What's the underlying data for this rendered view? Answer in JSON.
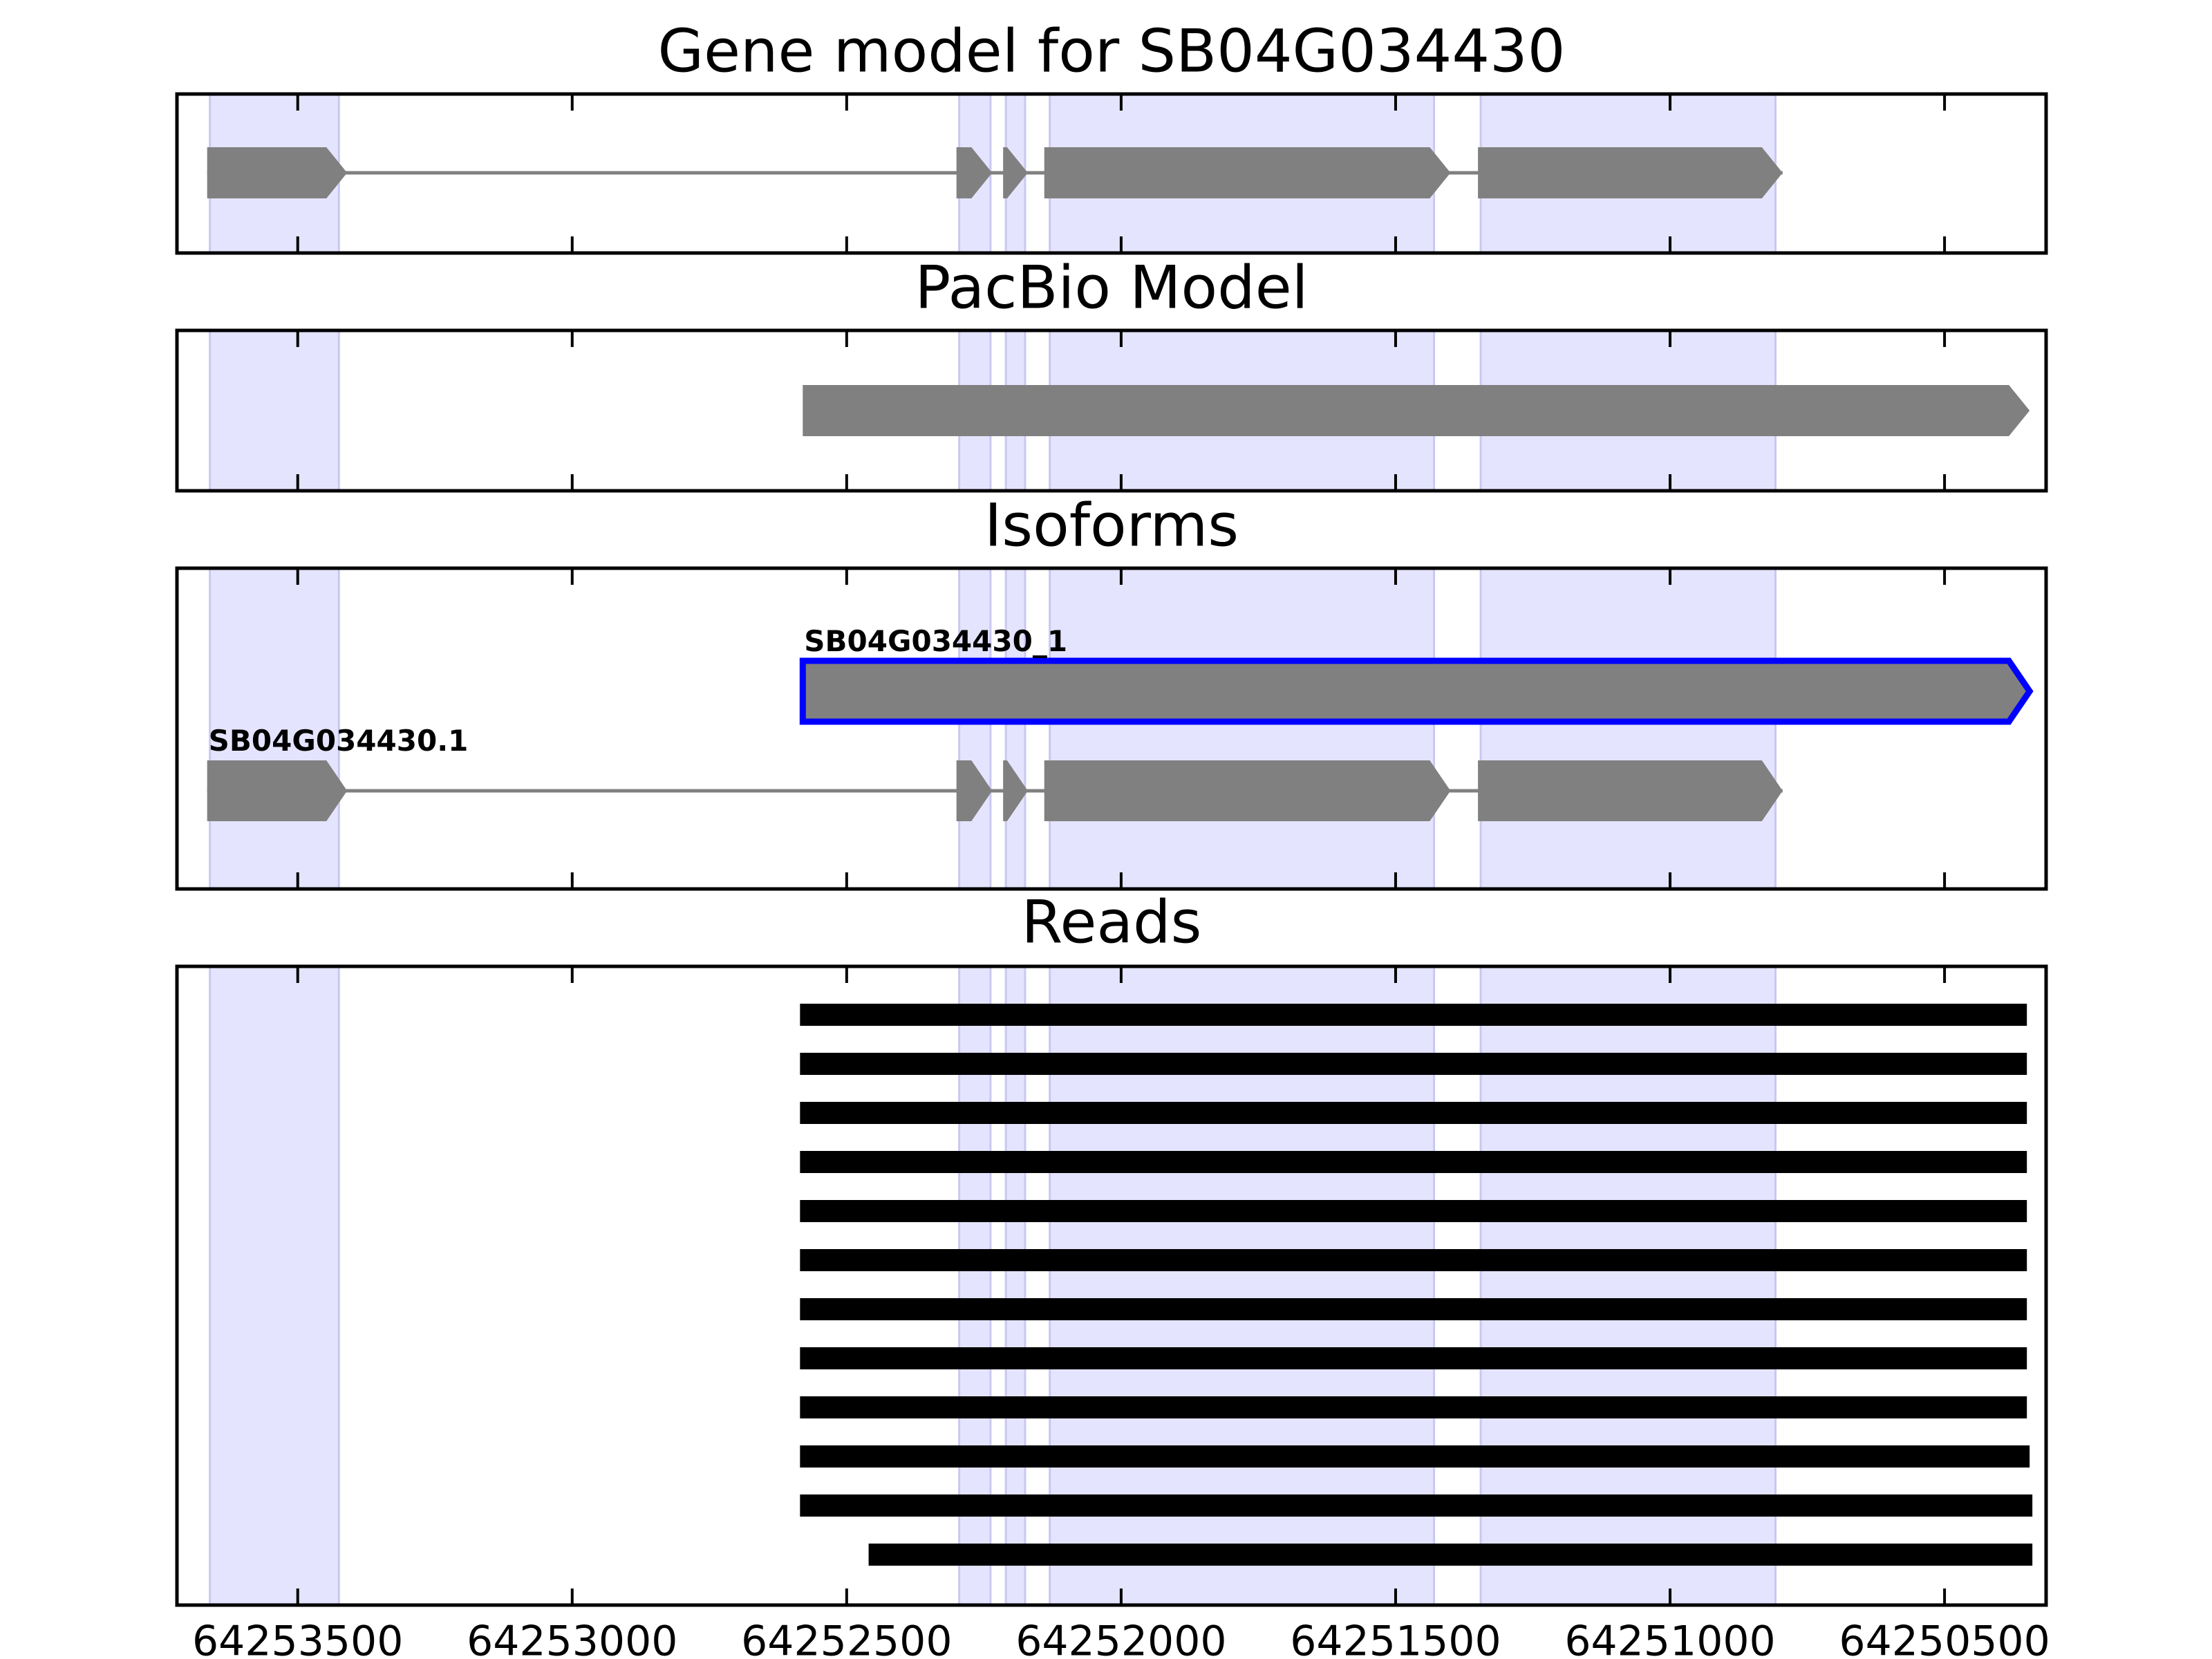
{
  "chart_data": {
    "type": "gene-model-tracks",
    "x_reversed": true,
    "xlim": [
      64253720,
      64250315
    ],
    "xticks": [
      64253500,
      64253000,
      64252500,
      64252000,
      64251500,
      64251000,
      64250500
    ],
    "xtick_labels": [
      "64253500",
      "64253000",
      "64252500",
      "64252000",
      "64251500",
      "64251000",
      "64250500"
    ],
    "colors": {
      "exon_fill": "#808080",
      "intron_line": "#808080",
      "shade": "#e4e4ff",
      "shade_edge": "#c8c8f2",
      "highlight_outline": "#0000ff",
      "read": "#000000",
      "axis": "#000000"
    },
    "shaded_regions": [
      [
        64253660,
        64253425
      ],
      [
        64252295,
        64252238
      ],
      [
        64252210,
        64252175
      ],
      [
        64252130,
        64251430
      ],
      [
        64251345,
        64250808
      ]
    ],
    "panels": [
      {
        "title": "Gene model for SB04G034430",
        "kind": "gene",
        "rows": [
          {
            "label": "",
            "highlight": false,
            "exons": [
              [
                64253665,
                64253410
              ],
              [
                64252300,
                64252235
              ],
              [
                64252215,
                64252170
              ],
              [
                64252140,
                64251400
              ],
              [
                64251350,
                64250795
              ]
            ]
          }
        ]
      },
      {
        "title": "PacBio Model",
        "kind": "gene",
        "rows": [
          {
            "label": "",
            "highlight": false,
            "exons": [
              [
                64252580,
                64250345
              ]
            ]
          }
        ]
      },
      {
        "title": "Isoforms",
        "kind": "isoforms",
        "rows": [
          {
            "label": "SB04G034430_1",
            "highlight": true,
            "exons": [
              [
                64252580,
                64250345
              ]
            ]
          },
          {
            "label": "SB04G034430.1",
            "highlight": false,
            "exons": [
              [
                64253665,
                64253410
              ],
              [
                64252300,
                64252235
              ],
              [
                64252215,
                64252170
              ],
              [
                64252140,
                64251400
              ],
              [
                64251350,
                64250795
              ]
            ]
          }
        ]
      },
      {
        "title": "Reads",
        "kind": "reads",
        "reads": [
          [
            64252585,
            64250350
          ],
          [
            64252585,
            64250350
          ],
          [
            64252585,
            64250350
          ],
          [
            64252585,
            64250350
          ],
          [
            64252585,
            64250350
          ],
          [
            64252585,
            64250350
          ],
          [
            64252585,
            64250350
          ],
          [
            64252585,
            64250350
          ],
          [
            64252585,
            64250350
          ],
          [
            64252585,
            64250345
          ],
          [
            64252585,
            64250340
          ],
          [
            64252460,
            64250340
          ]
        ]
      }
    ]
  }
}
